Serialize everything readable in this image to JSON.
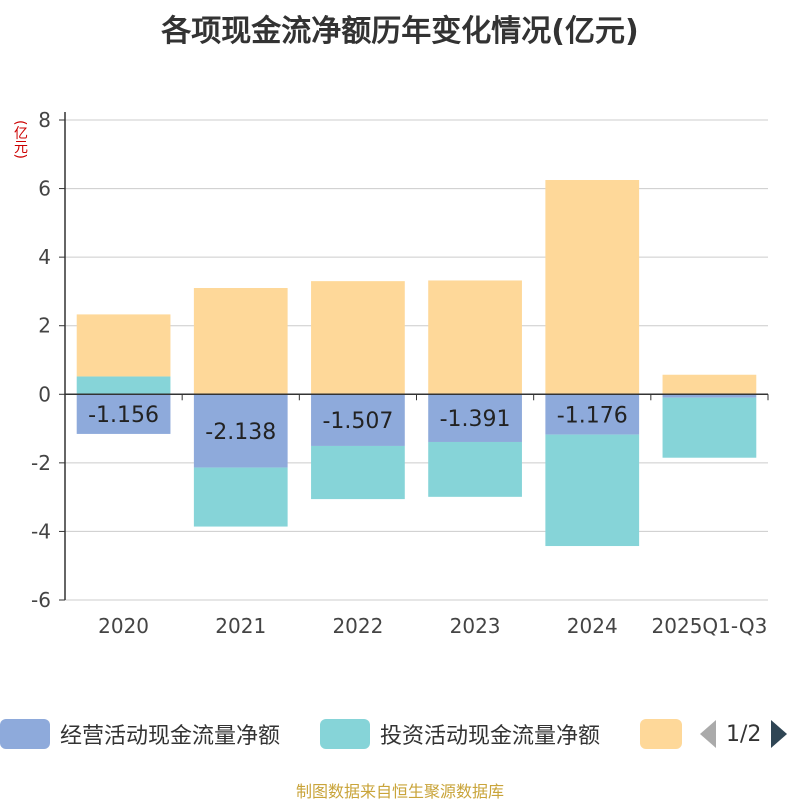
{
  "title": "各项现金流净额历年变化情况(亿元)",
  "unit_label": "(亿元)",
  "legend": {
    "items": [
      {
        "label": "经营活动现金流量净额",
        "color": "#8eaadb"
      },
      {
        "label": "投资活动现金流量净额",
        "color": "#86d4d8"
      },
      {
        "label": "",
        "color": "#fed899"
      }
    ],
    "pager": "1/2"
  },
  "source": "制图数据来自恒生聚源数据库",
  "chart_data": {
    "type": "bar",
    "stacked": true,
    "categories": [
      "2020",
      "2021",
      "2022",
      "2023",
      "2024",
      "2025Q1-Q3"
    ],
    "ylim": [
      -6,
      8
    ],
    "yticks": [
      -6,
      -4,
      -2,
      0,
      2,
      4,
      6,
      8
    ],
    "grid": true,
    "legend_position": "bottom",
    "series": [
      {
        "name": "经营活动现金流量净额",
        "color": "#8eaadb",
        "values": [
          -1.156,
          -2.138,
          -1.507,
          -1.391,
          -1.176,
          -0.1
        ],
        "labels": [
          "-1.156",
          "-2.138",
          "-1.507",
          "-1.391",
          "-1.176",
          ""
        ]
      },
      {
        "name": "投资活动现金流量净额",
        "color": "#86d4d8",
        "values": [
          0.52,
          -1.72,
          -1.55,
          -1.6,
          -3.25,
          -1.75
        ]
      },
      {
        "color": "#fed899",
        "values": [
          1.81,
          3.1,
          3.3,
          3.32,
          6.25,
          0.57
        ]
      }
    ]
  }
}
